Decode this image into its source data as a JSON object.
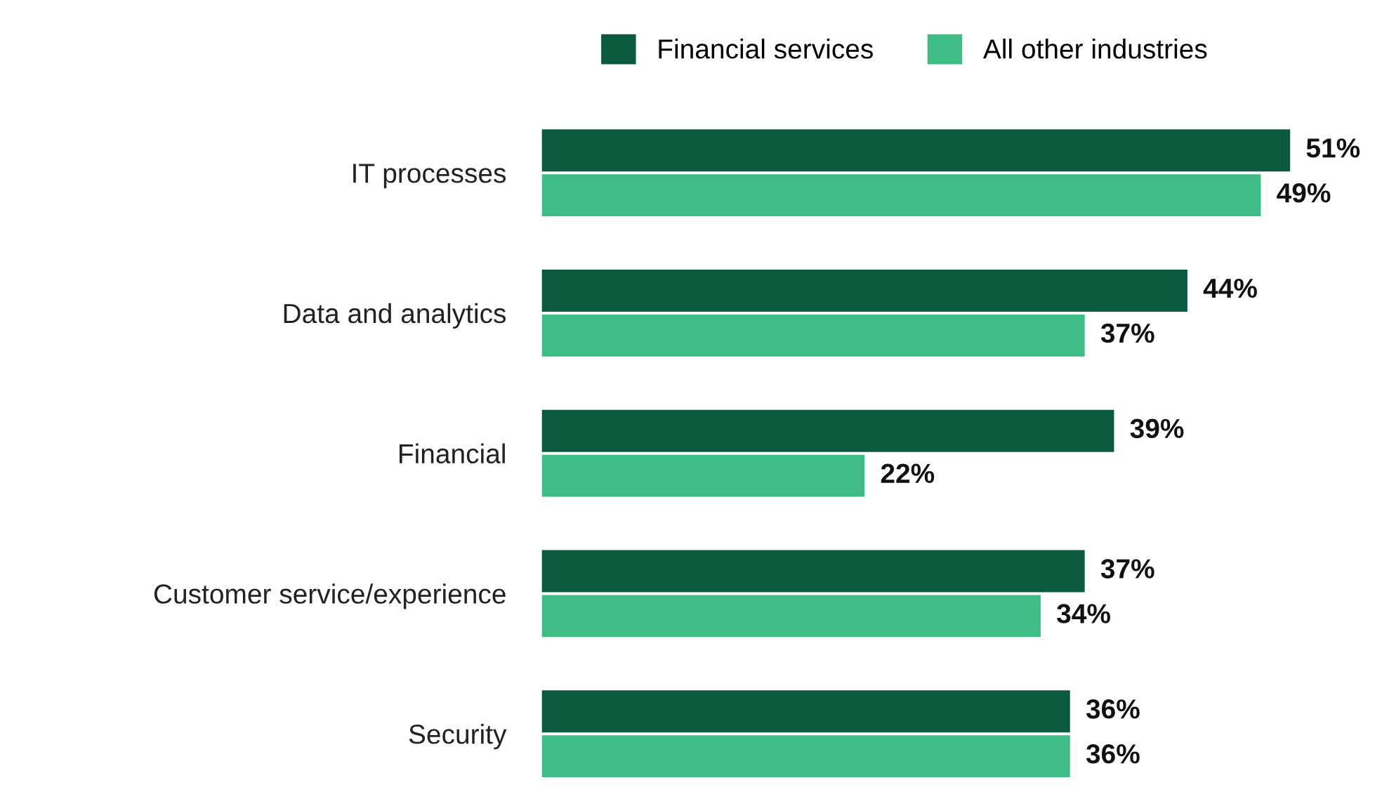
{
  "chart_data": {
    "type": "bar",
    "orientation": "horizontal",
    "categories": [
      "IT processes",
      "Data and analytics",
      "Financial",
      "Customer service/experience",
      "Security"
    ],
    "series": [
      {
        "name": "Financial services",
        "color": "#0b5a3e",
        "values": [
          51,
          44,
          39,
          37,
          36
        ],
        "value_labels": [
          "51%",
          "44%",
          "39%",
          "37%",
          "36%"
        ]
      },
      {
        "name": "All other industries",
        "color": "#3dbd84",
        "values": [
          49,
          37,
          22,
          34,
          36
        ],
        "value_labels": [
          "49%",
          "37%",
          "22%",
          "34%",
          "36%"
        ]
      }
    ],
    "legend": "top",
    "grid": false
  }
}
